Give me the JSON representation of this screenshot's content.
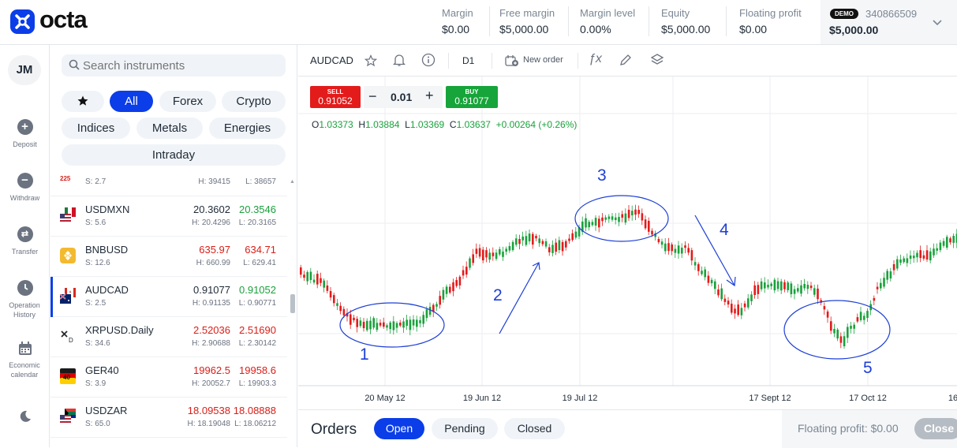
{
  "brand": {
    "name": "octa",
    "colors": {
      "accent": "#0b3ee8",
      "sell": "#e31b1b",
      "buy": "#17a43a"
    }
  },
  "header": {
    "metrics": [
      {
        "label": "Margin",
        "value": "$0.00"
      },
      {
        "label": "Free margin",
        "value": "$5,000.00"
      },
      {
        "label": "Margin level",
        "value": "0.00%"
      },
      {
        "label": "Equity",
        "value": "$5,000.00"
      },
      {
        "label": "Floating profit",
        "value": "$0.00"
      }
    ],
    "account": {
      "badge": "DEMO",
      "id": "340866509",
      "balance": "$5,000.00"
    }
  },
  "leftnav": {
    "avatar": "JM",
    "items": [
      {
        "label": "Deposit",
        "icon": "plus-circle-icon"
      },
      {
        "label": "Withdraw",
        "icon": "minus-circle-icon"
      },
      {
        "label": "Transfer",
        "icon": "transfer-icon"
      },
      {
        "label": "Operation History",
        "icon": "clock-icon"
      },
      {
        "label": "Economic calendar",
        "icon": "calendar-icon"
      },
      {
        "label": "",
        "icon": "moon-icon"
      }
    ]
  },
  "instruments": {
    "search_placeholder": "Search instruments",
    "filters": [
      "All",
      "Forex",
      "Crypto",
      "Indices",
      "Metals",
      "Energies",
      "Intraday"
    ],
    "partial_row": {
      "badge": "225",
      "spread": "S: 2.7",
      "high": "H: 39415",
      "low": "L: 38657"
    },
    "rows": [
      {
        "symbol": "USDMXN",
        "spread": "S: 5.6",
        "bid": "20.3602",
        "ask": "20.3546",
        "high": "H: 20.4296",
        "low": "L: 20.3165",
        "bid_color": "dark",
        "ask_color": "green"
      },
      {
        "symbol": "BNBUSD",
        "spread": "S: 12.6",
        "bid": "635.97",
        "ask": "634.71",
        "high": "H: 660.99",
        "low": "L: 629.41",
        "bid_color": "red",
        "ask_color": "red"
      },
      {
        "symbol": "AUDCAD",
        "spread": "S: 2.5",
        "bid": "0.91077",
        "ask": "0.91052",
        "high": "H: 0.91135",
        "low": "L: 0.90771",
        "bid_color": "dark",
        "ask_color": "green"
      },
      {
        "symbol": "XRPUSD.Daily",
        "spread": "S: 34.6",
        "bid": "2.52036",
        "ask": "2.51690",
        "high": "H: 2.90688",
        "low": "L: 2.30142",
        "bid_color": "red",
        "ask_color": "red"
      },
      {
        "symbol": "GER40",
        "spread": "S: 3.9",
        "bid": "19962.5",
        "ask": "19958.6",
        "high": "H: 20052.7",
        "low": "L: 19903.3",
        "bid_color": "red",
        "ask_color": "red"
      },
      {
        "symbol": "USDZAR",
        "spread": "S: 65.0",
        "bid": "18.09538",
        "ask": "18.08888",
        "high": "H: 18.19048",
        "low": "L: 18.06212",
        "bid_color": "red",
        "ask_color": "red"
      }
    ]
  },
  "chart": {
    "symbol": "AUDCAD",
    "timeframe": "D1",
    "new_order_label": "New order",
    "sell": {
      "label": "SELL",
      "price": "0.91052"
    },
    "buy": {
      "label": "BUY",
      "price": "0.91077"
    },
    "quantity": "0.01",
    "ohlc": {
      "o_label": "O",
      "o": "1.03373",
      "h_label": "H",
      "h": "1.03884",
      "l_label": "L",
      "l": "1.03369",
      "c_label": "C",
      "c": "1.03637",
      "change": "+0.00264 (+0.26%)"
    },
    "x_labels": [
      "20 May 12",
      "19 Jun 12",
      "19 Jul 12",
      "17 Sept 12",
      "17 Oct 12",
      "16"
    ],
    "annotations": [
      "1",
      "2",
      "3",
      "4",
      "5"
    ]
  },
  "orders": {
    "title": "Orders",
    "tabs": [
      "Open",
      "Pending",
      "Closed"
    ],
    "floating_label": "Floating profit: $0.00",
    "close_label": "Close"
  }
}
